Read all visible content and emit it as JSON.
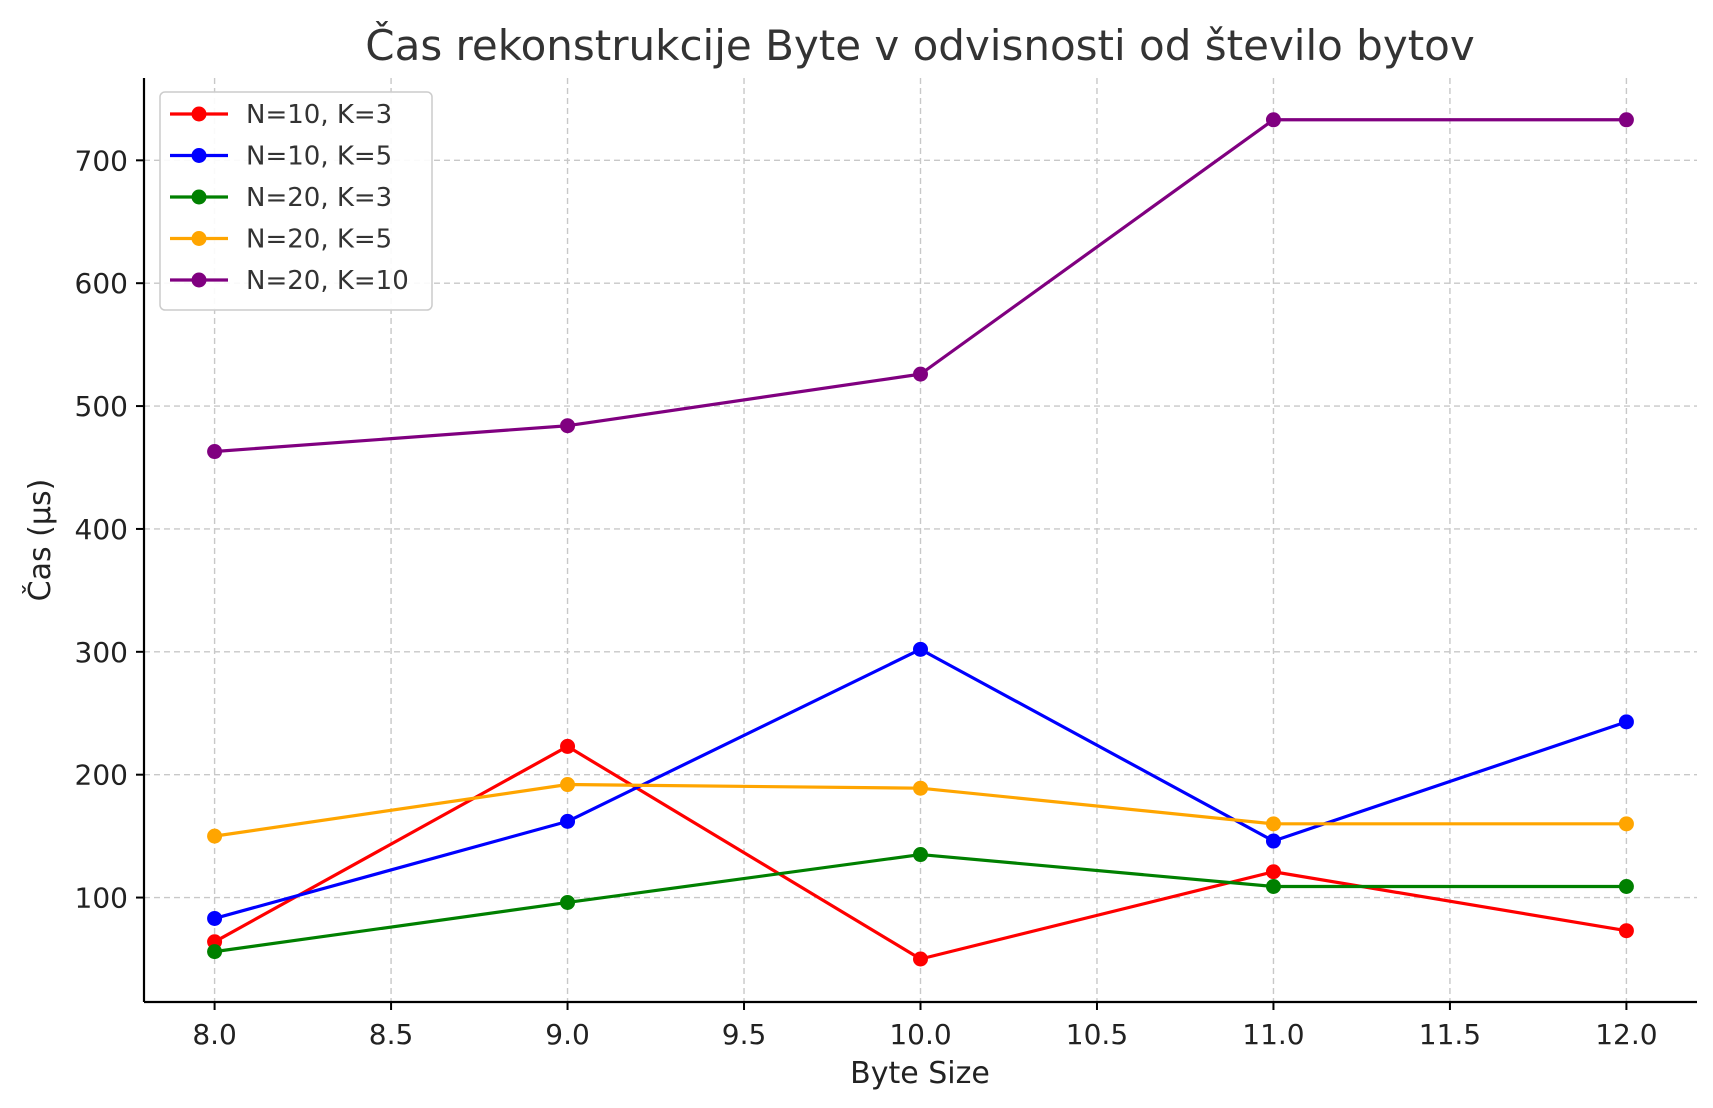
{
  "chart_data": {
    "type": "line",
    "title": "Čas rekonstrukcije Byte v odvisnosti od število bytov",
    "xlabel": "Byte Size",
    "ylabel": "Čas (µs)",
    "xlim": [
      7.8,
      12.2
    ],
    "ylim": [
      15,
      767
    ],
    "xticks": [
      "8.0",
      "8.5",
      "9.0",
      "9.5",
      "10.0",
      "10.5",
      "11.0",
      "11.5",
      "12.0"
    ],
    "xtick_values": [
      8.0,
      8.5,
      9.0,
      9.5,
      10.0,
      10.5,
      11.0,
      11.5,
      12.0
    ],
    "yticks": [
      "100",
      "200",
      "300",
      "400",
      "500",
      "600",
      "700"
    ],
    "ytick_values": [
      100,
      200,
      300,
      400,
      500,
      600,
      700
    ],
    "grid": true,
    "legend_position": "top-left",
    "x": [
      8,
      9,
      10,
      11,
      12
    ],
    "series": [
      {
        "name": "N=10, K=3",
        "color": "#ff0000",
        "values": [
          64,
          223,
          50,
          121,
          73
        ]
      },
      {
        "name": "N=10, K=5",
        "color": "#0000ff",
        "values": [
          83,
          162,
          302,
          146,
          243
        ]
      },
      {
        "name": "N=20, K=3",
        "color": "#008000",
        "values": [
          56,
          96,
          135,
          109,
          109
        ]
      },
      {
        "name": "N=20, K=5",
        "color": "#ffa500",
        "values": [
          150,
          192,
          189,
          160,
          160
        ]
      },
      {
        "name": "N=20, K=10",
        "color": "#800080",
        "values": [
          463,
          484,
          526,
          733,
          733
        ]
      }
    ]
  }
}
